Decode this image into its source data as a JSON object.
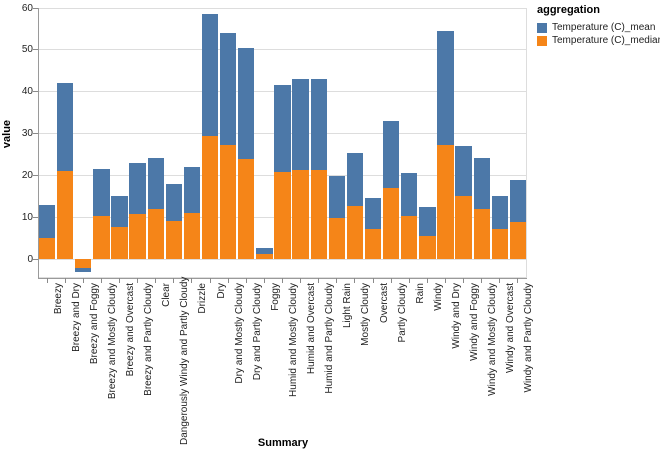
{
  "chart_data": {
    "type": "bar",
    "stacked": true,
    "xlabel": "Summary",
    "ylabel": "value",
    "ylim": [
      -4.5,
      60
    ],
    "yticks": [
      0,
      10,
      20,
      30,
      40,
      50,
      60
    ],
    "grid": true,
    "legend": {
      "title": "aggregation",
      "position": "top-right",
      "entries": [
        {
          "label": "Temperature (C)_mean",
          "color": "#4c78a8"
        },
        {
          "label": "Temperature (C)_median",
          "color": "#f58518"
        }
      ]
    },
    "categories": [
      "Breezy",
      "Breezy and Dry",
      "Breezy and Foggy",
      "Breezy and Mostly Cloudy",
      "Breezy and Overcast",
      "Breezy and Partly Cloudy",
      "Clear",
      "Dangerously Windy and Partly Cloudy",
      "Drizzle",
      "Dry",
      "Dry and Mostly Cloudy",
      "Dry and Partly Cloudy",
      "Foggy",
      "Humid and Mostly Cloudy",
      "Humid and Overcast",
      "Humid and Partly Cloudy",
      "Light Rain",
      "Mostly Cloudy",
      "Overcast",
      "Partly Cloudy",
      "Rain",
      "Windy",
      "Windy and Dry",
      "Windy and Foggy",
      "Windy and Mostly Cloudy",
      "Windy and Overcast",
      "Windy and Partly Cloudy"
    ],
    "series": [
      {
        "name": "Temperature (C)_mean",
        "color": "#4c78a8",
        "values": [
          8.0,
          21.0,
          -0.9,
          11.1,
          7.4,
          12.2,
          12.1,
          8.8,
          11.0,
          29.0,
          26.8,
          26.6,
          1.5,
          20.7,
          21.6,
          21.8,
          10.0,
          12.7,
          7.4,
          16.0,
          10.2,
          7.0,
          27.2,
          12.1,
          12.1,
          7.9,
          10.0
        ]
      },
      {
        "name": "Temperature (C)_median",
        "color": "#f58518",
        "values": [
          5.0,
          21.0,
          -2.2,
          10.4,
          7.6,
          10.8,
          12.0,
          9.2,
          11.0,
          29.5,
          27.2,
          23.9,
          1.2,
          20.8,
          21.4,
          21.2,
          9.8,
          12.7,
          7.3,
          17.0,
          10.4,
          5.5,
          27.2,
          15.0,
          12.0,
          7.2,
          8.8
        ]
      }
    ]
  }
}
